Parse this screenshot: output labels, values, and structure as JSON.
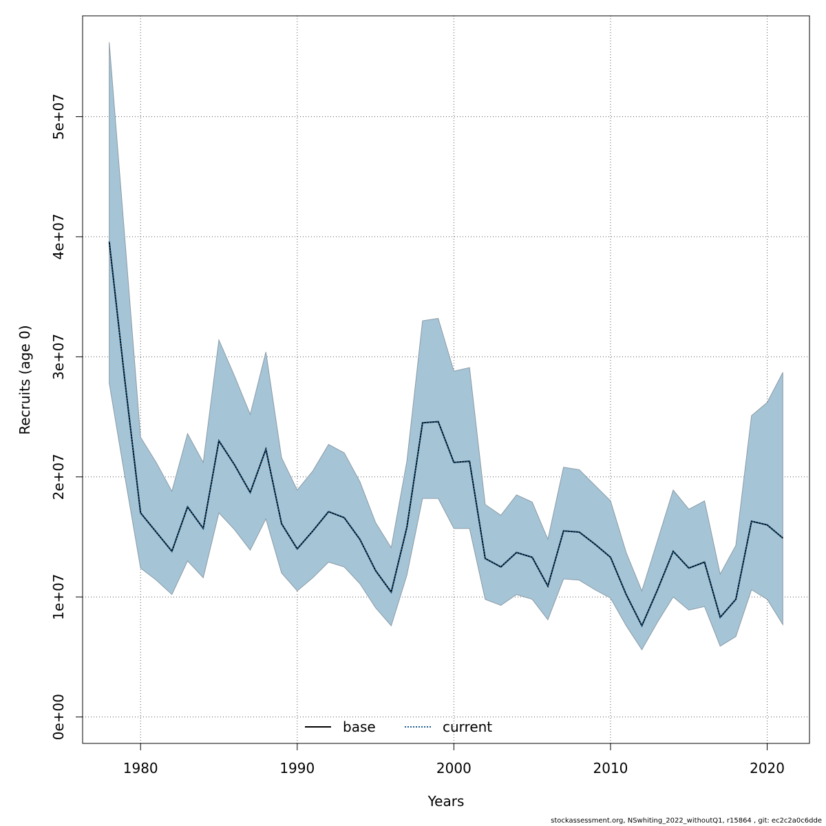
{
  "chart_data": {
    "type": "line",
    "xlabel": "Years",
    "ylabel": "Recruits (age 0)",
    "xlim": [
      1976.3,
      2022.7
    ],
    "ylim": [
      -2200000,
      58400000
    ],
    "x_ticks": [
      1980,
      1990,
      2000,
      2010,
      2020
    ],
    "x_tick_labels": [
      "1980",
      "1990",
      "2000",
      "2010",
      "2020"
    ],
    "y_ticks": [
      0,
      10000000,
      20000000,
      30000000,
      40000000,
      50000000
    ],
    "y_tick_labels": [
      "0e+00",
      "1e+07",
      "2e+07",
      "3e+07",
      "4e+07",
      "5e+07"
    ],
    "grid": true,
    "legend_position": "bottom-center",
    "x": [
      1978,
      1979,
      1980,
      1981,
      1982,
      1983,
      1984,
      1985,
      1986,
      1987,
      1988,
      1989,
      1990,
      1991,
      1992,
      1993,
      1994,
      1995,
      1996,
      1997,
      1998,
      1999,
      2000,
      2001,
      2002,
      2003,
      2004,
      2005,
      2006,
      2007,
      2008,
      2009,
      2010,
      2011,
      2012,
      2013,
      2014,
      2015,
      2016,
      2017,
      2018,
      2019,
      2020,
      2021
    ],
    "series": [
      {
        "name": "base",
        "style": "solid",
        "color": "#000000",
        "values": [
          39600000,
          28000000,
          17000000,
          15400000,
          13800000,
          17500000,
          15700000,
          23000000,
          21000000,
          18700000,
          22300000,
          16100000,
          14000000,
          15500000,
          17100000,
          16600000,
          14800000,
          12200000,
          10400000,
          15800000,
          24500000,
          24600000,
          21200000,
          21300000,
          13200000,
          12500000,
          13700000,
          13300000,
          10900000,
          15500000,
          15400000,
          14400000,
          13300000,
          10200000,
          7600000,
          10600000,
          13800000,
          12400000,
          12900000,
          8300000,
          9800000,
          16300000,
          16000000,
          14900000
        ],
        "lower": [
          27800000,
          20000000,
          12400000,
          11400000,
          10200000,
          13000000,
          11600000,
          17000000,
          15600000,
          13900000,
          16500000,
          12000000,
          10500000,
          11600000,
          12900000,
          12500000,
          11100000,
          9100000,
          7600000,
          11800000,
          18200000,
          18200000,
          15700000,
          15700000,
          9800000,
          9300000,
          10200000,
          9800000,
          8100000,
          11500000,
          11400000,
          10600000,
          9900000,
          7600000,
          5600000,
          7900000,
          10000000,
          8900000,
          9200000,
          5900000,
          6700000,
          10600000,
          9800000,
          7700000
        ],
        "upper": [
          56200000,
          39800000,
          23300000,
          21200000,
          18800000,
          23600000,
          21200000,
          31400000,
          28400000,
          25200000,
          30400000,
          21600000,
          18900000,
          20500000,
          22700000,
          22000000,
          19600000,
          16200000,
          14100000,
          21300000,
          33000000,
          33200000,
          28800000,
          29100000,
          17700000,
          16800000,
          18500000,
          17900000,
          14800000,
          20800000,
          20600000,
          19300000,
          18000000,
          13700000,
          10500000,
          14700000,
          18900000,
          17300000,
          18000000,
          11900000,
          14300000,
          25100000,
          26200000,
          28700000
        ]
      },
      {
        "name": "current",
        "style": "dotted",
        "color": "#1a5a8c",
        "values": [
          39600000,
          28000000,
          17000000,
          15400000,
          13800000,
          17500000,
          15700000,
          23000000,
          21000000,
          18700000,
          22300000,
          16100000,
          14000000,
          15500000,
          17100000,
          16600000,
          14800000,
          12200000,
          10400000,
          15800000,
          24500000,
          24600000,
          21200000,
          21300000,
          13200000,
          12500000,
          13700000,
          13300000,
          10900000,
          15500000,
          15400000,
          14400000,
          13300000,
          10200000,
          7600000,
          10600000,
          13800000,
          12400000,
          12900000,
          8300000,
          9800000,
          16300000,
          16000000,
          14900000
        ]
      }
    ],
    "band_color": "#a5c5d7"
  },
  "footer": {
    "text": "stockassessment.org, NSwhiting_2022_withoutQ1, r15864 , git: ec2c2a0c6dde"
  }
}
